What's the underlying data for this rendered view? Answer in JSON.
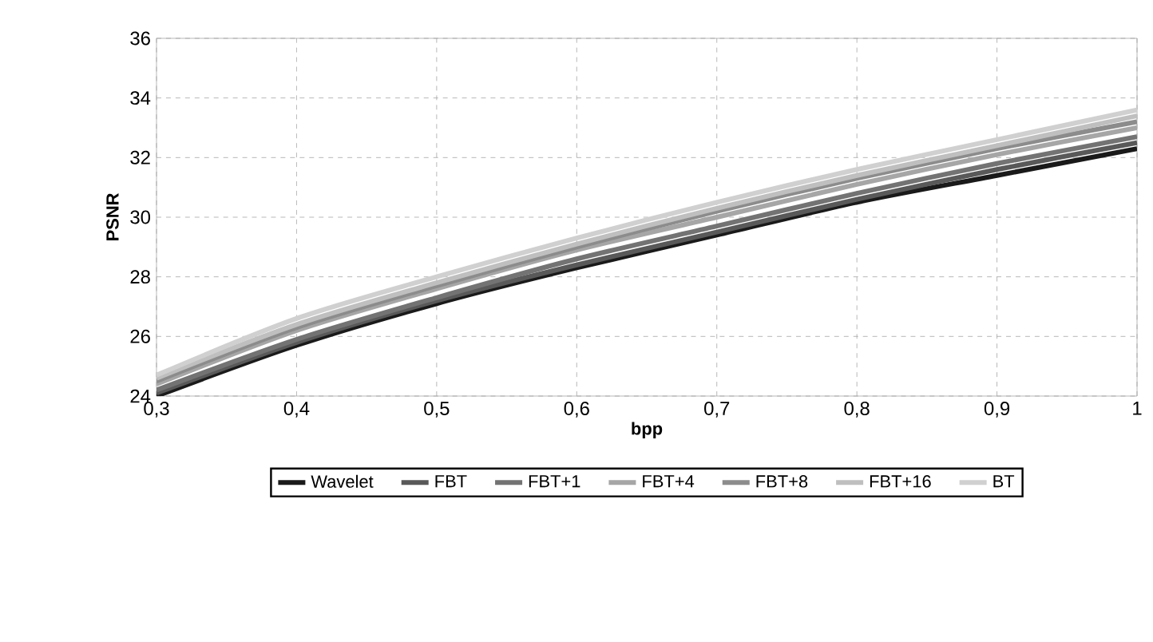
{
  "chart_data": {
    "type": "line",
    "xlabel": "bpp",
    "ylabel": "PSNR",
    "x": [
      0.3,
      0.4,
      0.5,
      0.6,
      0.7,
      0.8,
      0.9,
      1
    ],
    "xlim": [
      0.3,
      1
    ],
    "xticks": [
      {
        "value": 0.3,
        "label": "0,3"
      },
      {
        "value": 0.4,
        "label": "0,4"
      },
      {
        "value": 0.5,
        "label": "0,5"
      },
      {
        "value": 0.6,
        "label": "0,6"
      },
      {
        "value": 0.7,
        "label": "0,7"
      },
      {
        "value": 0.8,
        "label": "0,8"
      },
      {
        "value": 0.9,
        "label": "0,9"
      },
      1
    ],
    "ylim": [
      24,
      36
    ],
    "yticks": [
      24,
      26,
      28,
      30,
      32,
      34,
      36
    ],
    "grid": true,
    "legend": "bottom",
    "series": [
      {
        "name": "Wavelet",
        "color": "#1a1a1a",
        "values": [
          24.0,
          25.7,
          27.1,
          28.3,
          29.4,
          30.5,
          31.4,
          32.3
        ]
      },
      {
        "name": "FBT",
        "color": "#595959",
        "values": [
          24.1,
          25.8,
          27.2,
          28.4,
          29.5,
          30.6,
          31.6,
          32.5
        ]
      },
      {
        "name": "FBT+1",
        "color": "#737373",
        "values": [
          24.2,
          25.9,
          27.3,
          28.6,
          29.7,
          30.8,
          31.8,
          32.7
        ]
      },
      {
        "name": "FBT+4",
        "color": "#a6a6a6",
        "values": [
          24.4,
          26.2,
          27.6,
          28.9,
          30.0,
          31.1,
          32.1,
          33.0
        ]
      },
      {
        "name": "FBT+8",
        "color": "#8c8c8c",
        "values": [
          24.5,
          26.3,
          27.7,
          29.0,
          30.2,
          31.3,
          32.3,
          33.2
        ]
      },
      {
        "name": "FBT+16",
        "color": "#bfbfbf",
        "values": [
          24.6,
          26.4,
          27.8,
          29.1,
          30.3,
          31.4,
          32.4,
          33.4
        ]
      },
      {
        "name": "BT",
        "color": "#d0d0d0",
        "values": [
          24.7,
          26.6,
          28.0,
          29.3,
          30.5,
          31.6,
          32.6,
          33.6
        ]
      }
    ]
  }
}
